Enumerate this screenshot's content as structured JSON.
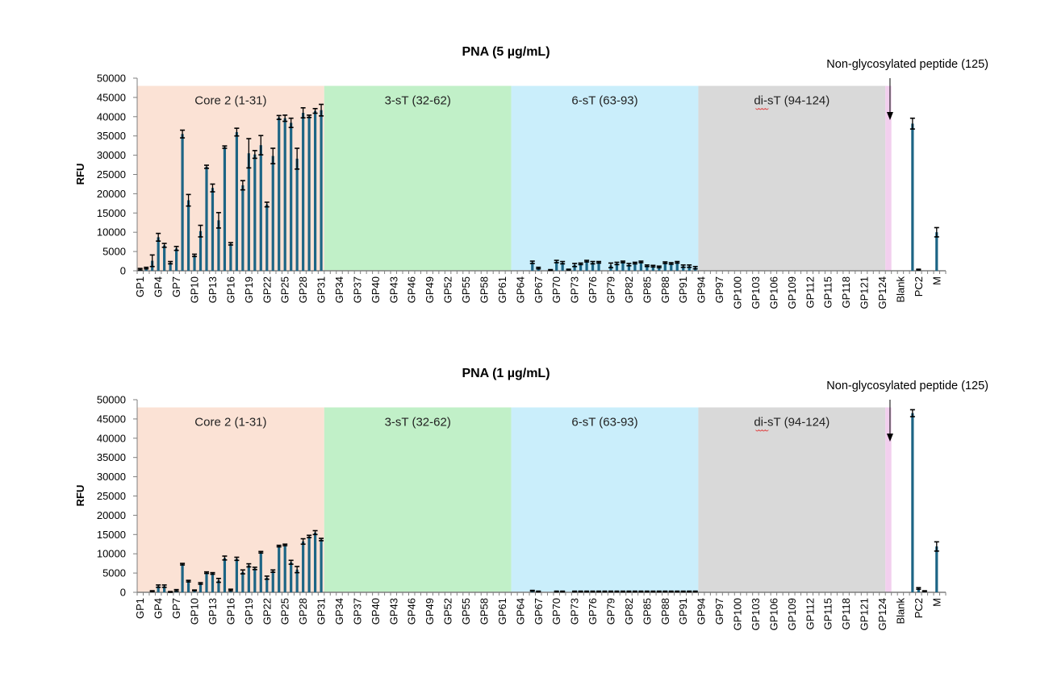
{
  "chart_data": [
    {
      "type": "bar",
      "title": "PNA (5 µg/mL)",
      "ylabel": "RFU",
      "ylim": [
        0,
        50000
      ],
      "yticks": [
        0,
        5000,
        10000,
        15000,
        20000,
        25000,
        30000,
        35000,
        40000,
        45000,
        50000
      ],
      "x_tick_labels": [
        "GP1",
        "GP4",
        "GP7",
        "GP10",
        "GP13",
        "GP16",
        "GP19",
        "GP22",
        "GP25",
        "GP28",
        "GP31",
        "GP34",
        "GP37",
        "GP40",
        "GP43",
        "GP46",
        "GP49",
        "GP52",
        "GP55",
        "GP58",
        "GP61",
        "GP64",
        "GP67",
        "GP70",
        "GP73",
        "GP76",
        "GP79",
        "GP82",
        "GP85",
        "GP88",
        "GP91",
        "GP94",
        "GP97",
        "GP100",
        "GP103",
        "GP106",
        "GP109",
        "GP112",
        "GP115",
        "GP118",
        "GP121",
        "GP124",
        "Blank",
        "PC2",
        "M"
      ],
      "regions": [
        {
          "label": "Core 2 (1-31)",
          "from": 1,
          "to": 31,
          "color": "#fbe2d5"
        },
        {
          "label": "3-sT (32-62)",
          "from": 32,
          "to": 62,
          "color": "#c1f0c8"
        },
        {
          "label": "6-sT (63-93)",
          "from": 63,
          "to": 93,
          "color": "#caeefb"
        },
        {
          "label": "di-sT (94-124)",
          "from": 94,
          "to": 124,
          "color": "#d9d9d9"
        },
        {
          "label": "",
          "from": 125,
          "to": 125,
          "color": "#f2cfee"
        }
      ],
      "annotation": "Non-glycosylated peptide (125)",
      "bar_color": "#1d6585",
      "values": [
        400,
        700,
        2600,
        8700,
        6600,
        2100,
        5800,
        35500,
        18300,
        4000,
        10300,
        27000,
        21500,
        13100,
        32100,
        7000,
        36000,
        22200,
        30500,
        30200,
        32600,
        17200,
        29800,
        39800,
        39600,
        38400,
        29100,
        41000,
        40100,
        41500,
        41700,
        0,
        0,
        0,
        0,
        0,
        0,
        0,
        0,
        0,
        0,
        0,
        0,
        0,
        0,
        0,
        0,
        0,
        0,
        0,
        0,
        0,
        0,
        0,
        0,
        0,
        0,
        0,
        0,
        0,
        0,
        0,
        0,
        0,
        0,
        2200,
        700,
        0,
        200,
        2400,
        2100,
        300,
        1500,
        1800,
        2500,
        2100,
        2200,
        0,
        1400,
        1900,
        2300,
        1600,
        2000,
        2300,
        1300,
        1200,
        1000,
        2100,
        1900,
        2200,
        1200,
        1200,
        800,
        0,
        0,
        0,
        0,
        0,
        0,
        0,
        0,
        0,
        0,
        0,
        0,
        0,
        0,
        0,
        0,
        0,
        0,
        0,
        0,
        0,
        0,
        0,
        0,
        0,
        0,
        0,
        0,
        0,
        0,
        0,
        0,
        0,
        0,
        0,
        38200,
        300,
        0,
        0,
        10000,
        0
      ],
      "errors": [
        200,
        200,
        1500,
        1000,
        500,
        300,
        500,
        1000,
        1500,
        300,
        1500,
        400,
        1000,
        2000,
        300,
        300,
        1000,
        1200,
        3800,
        1000,
        2500,
        600,
        2000,
        500,
        800,
        1200,
        2700,
        1300,
        300,
        600,
        1500,
        0,
        0,
        0,
        0,
        0,
        0,
        0,
        0,
        0,
        0,
        0,
        0,
        0,
        0,
        0,
        0,
        0,
        0,
        0,
        0,
        0,
        0,
        0,
        0,
        0,
        0,
        0,
        0,
        0,
        0,
        0,
        0,
        0,
        0,
        300,
        200,
        0,
        100,
        300,
        300,
        100,
        400,
        200,
        200,
        300,
        200,
        0,
        600,
        300,
        200,
        300,
        200,
        200,
        200,
        200,
        200,
        200,
        200,
        200,
        300,
        300,
        300,
        0,
        0,
        0,
        0,
        0,
        0,
        0,
        0,
        0,
        0,
        0,
        0,
        0,
        0,
        0,
        0,
        0,
        0,
        0,
        0,
        0,
        0,
        0,
        0,
        0,
        0,
        0,
        0,
        0,
        0,
        0,
        0,
        0,
        0,
        0,
        1400,
        100,
        0,
        0,
        1200,
        0
      ]
    },
    {
      "type": "bar",
      "title": "PNA (1 µg/mL)",
      "ylabel": "RFU",
      "ylim": [
        0,
        50000
      ],
      "yticks": [
        0,
        5000,
        10000,
        15000,
        20000,
        25000,
        30000,
        35000,
        40000,
        45000,
        50000
      ],
      "x_tick_labels": [
        "GP1",
        "GP4",
        "GP7",
        "GP10",
        "GP13",
        "GP16",
        "GP19",
        "GP22",
        "GP25",
        "GP28",
        "GP31",
        "GP34",
        "GP37",
        "GP40",
        "GP43",
        "GP46",
        "GP49",
        "GP52",
        "GP55",
        "GP58",
        "GP61",
        "GP64",
        "GP67",
        "GP70",
        "GP73",
        "GP76",
        "GP79",
        "GP82",
        "GP85",
        "GP88",
        "GP91",
        "GP94",
        "GP97",
        "GP100",
        "GP103",
        "GP106",
        "GP109",
        "GP112",
        "GP115",
        "GP118",
        "GP121",
        "GP124",
        "Blank",
        "PC2",
        "M"
      ],
      "regions": [
        {
          "label": "Core 2 (1-31)",
          "from": 1,
          "to": 31,
          "color": "#fbe2d5"
        },
        {
          "label": "3-sT (32-62)",
          "from": 32,
          "to": 62,
          "color": "#c1f0c8"
        },
        {
          "label": "6-sT (63-93)",
          "from": 63,
          "to": 93,
          "color": "#caeefb"
        },
        {
          "label": "di-sT (94-124)",
          "from": 94,
          "to": 124,
          "color": "#d9d9d9"
        },
        {
          "label": "",
          "from": 125,
          "to": 125,
          "color": "#f2cfee"
        }
      ],
      "annotation": "Non-glycosylated peptide (125)",
      "bar_color": "#1d6585",
      "values": [
        0,
        0,
        300,
        1600,
        1600,
        100,
        500,
        7300,
        2900,
        500,
        2300,
        5100,
        4900,
        3100,
        8900,
        600,
        8700,
        5300,
        7000,
        6200,
        10400,
        3800,
        5500,
        12000,
        12300,
        7800,
        5900,
        13200,
        14500,
        15500,
        13700,
        0,
        0,
        0,
        0,
        0,
        0,
        0,
        0,
        0,
        0,
        0,
        0,
        0,
        0,
        0,
        0,
        0,
        0,
        0,
        0,
        0,
        0,
        0,
        0,
        0,
        0,
        0,
        0,
        0,
        0,
        0,
        0,
        0,
        0,
        400,
        200,
        0,
        0,
        200,
        200,
        0,
        200,
        200,
        200,
        200,
        200,
        200,
        200,
        200,
        200,
        200,
        200,
        200,
        200,
        200,
        200,
        200,
        200,
        200,
        200,
        200,
        200,
        0,
        0,
        0,
        0,
        0,
        0,
        0,
        0,
        0,
        0,
        0,
        0,
        0,
        0,
        0,
        0,
        0,
        0,
        0,
        0,
        0,
        0,
        0,
        0,
        0,
        0,
        0,
        0,
        0,
        0,
        0,
        0,
        0,
        0,
        0,
        46500,
        1000,
        300,
        0,
        11900,
        0
      ],
      "errors": [
        100,
        100,
        100,
        300,
        300,
        100,
        200,
        200,
        200,
        100,
        200,
        200,
        200,
        500,
        500,
        200,
        400,
        500,
        400,
        300,
        200,
        400,
        300,
        200,
        200,
        500,
        800,
        700,
        300,
        500,
        300,
        0,
        0,
        0,
        0,
        0,
        0,
        0,
        0,
        0,
        0,
        0,
        0,
        0,
        0,
        0,
        0,
        0,
        0,
        0,
        0,
        0,
        0,
        0,
        0,
        0,
        0,
        0,
        0,
        0,
        0,
        0,
        0,
        0,
        0,
        100,
        100,
        0,
        0,
        100,
        100,
        0,
        100,
        100,
        100,
        100,
        100,
        100,
        100,
        100,
        100,
        100,
        100,
        100,
        100,
        100,
        100,
        100,
        100,
        100,
        100,
        100,
        100,
        0,
        0,
        0,
        0,
        0,
        0,
        0,
        0,
        0,
        0,
        0,
        0,
        0,
        0,
        0,
        0,
        0,
        0,
        0,
        0,
        0,
        0,
        0,
        0,
        0,
        0,
        0,
        0,
        0,
        0,
        0,
        0,
        0,
        0,
        0,
        900,
        200,
        100,
        0,
        1200,
        0
      ]
    }
  ]
}
